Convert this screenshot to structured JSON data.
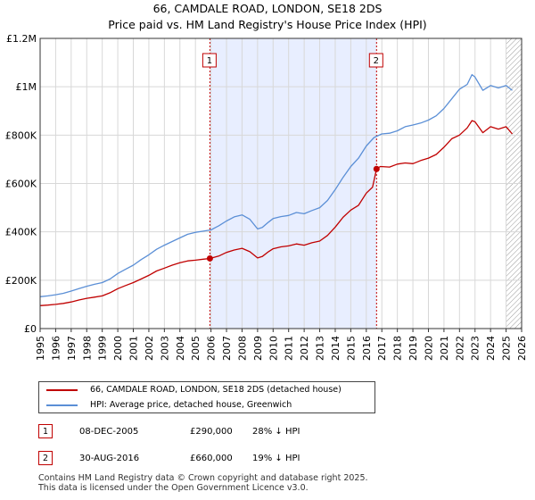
{
  "header": {
    "title_line1": "66, CAMDALE ROAD, LONDON, SE18 2DS",
    "title_line2": "Price paid vs. HM Land Registry's House Price Index (HPI)"
  },
  "colors": {
    "property": "#c00000",
    "hpi": "#5b8fd6",
    "shade": "#e8eeff",
    "marker": "#c00000"
  },
  "chart_data": {
    "type": "line",
    "xlim": [
      1995,
      2026
    ],
    "ylim": [
      0,
      1200000
    ],
    "x_ticks": [
      "1995",
      "1996",
      "1997",
      "1998",
      "1999",
      "2000",
      "2001",
      "2002",
      "2003",
      "2004",
      "2005",
      "2006",
      "2007",
      "2008",
      "2009",
      "2010",
      "2011",
      "2012",
      "2013",
      "2014",
      "2015",
      "2016",
      "2017",
      "2018",
      "2019",
      "2020",
      "2021",
      "2022",
      "2023",
      "2024",
      "2025",
      "2026"
    ],
    "y_ticks": [
      {
        "value": 0,
        "label": "£0"
      },
      {
        "value": 200000,
        "label": "£200K"
      },
      {
        "value": 400000,
        "label": "£400K"
      },
      {
        "value": 600000,
        "label": "£600K"
      },
      {
        "value": 800000,
        "label": "£800K"
      },
      {
        "value": 1000000,
        "label": "£1M"
      },
      {
        "value": 1200000,
        "label": "£1.2M"
      }
    ],
    "grid": true,
    "shaded_range": [
      2005.93,
      2016.66
    ],
    "hatched_from": 2025.0,
    "series": [
      {
        "name": "66, CAMDALE ROAD, LONDON, SE18 2DS (detached house)",
        "color": "#c00000",
        "x": [
          1995.0,
          1995.5,
          1996.0,
          1996.5,
          1997.0,
          1997.5,
          1998.0,
          1998.5,
          1999.0,
          1999.5,
          2000.0,
          2000.5,
          2001.0,
          2001.5,
          2002.0,
          2002.5,
          2003.0,
          2003.5,
          2004.0,
          2004.5,
          2005.0,
          2005.5,
          2005.93,
          2006.5,
          2007.0,
          2007.5,
          2008.0,
          2008.5,
          2009.0,
          2009.3,
          2009.7,
          2010.0,
          2010.5,
          2011.0,
          2011.5,
          2012.0,
          2012.5,
          2013.0,
          2013.5,
          2014.0,
          2014.5,
          2015.0,
          2015.5,
          2016.0,
          2016.4,
          2016.66,
          2016.9,
          2017.5,
          2018.0,
          2018.5,
          2019.0,
          2019.5,
          2020.0,
          2020.5,
          2021.0,
          2021.5,
          2022.0,
          2022.5,
          2022.8,
          2023.0,
          2023.5,
          2024.0,
          2024.5,
          2025.0,
          2025.4
        ],
        "values": [
          95000,
          97000,
          100000,
          104000,
          110000,
          118000,
          125000,
          130000,
          135000,
          148000,
          165000,
          178000,
          190000,
          205000,
          220000,
          238000,
          250000,
          262000,
          272000,
          280000,
          283000,
          287000,
          290000,
          300000,
          315000,
          325000,
          332000,
          318000,
          292000,
          298000,
          318000,
          330000,
          338000,
          342000,
          350000,
          345000,
          355000,
          362000,
          385000,
          420000,
          460000,
          490000,
          510000,
          560000,
          585000,
          660000,
          670000,
          668000,
          680000,
          685000,
          682000,
          695000,
          705000,
          720000,
          750000,
          785000,
          800000,
          830000,
          860000,
          855000,
          810000,
          835000,
          825000,
          835000,
          805000
        ]
      },
      {
        "name": "HPI: Average price, detached house, Greenwich",
        "color": "#5b8fd6",
        "x": [
          1995.0,
          1995.5,
          1996.0,
          1996.5,
          1997.0,
          1997.5,
          1998.0,
          1998.5,
          1999.0,
          1999.5,
          2000.0,
          2000.5,
          2001.0,
          2001.5,
          2002.0,
          2002.5,
          2003.0,
          2003.5,
          2004.0,
          2004.5,
          2005.0,
          2005.5,
          2006.0,
          2006.5,
          2007.0,
          2007.5,
          2008.0,
          2008.5,
          2009.0,
          2009.3,
          2009.7,
          2010.0,
          2010.5,
          2011.0,
          2011.5,
          2012.0,
          2012.5,
          2013.0,
          2013.5,
          2014.0,
          2014.5,
          2015.0,
          2015.5,
          2016.0,
          2016.5,
          2017.0,
          2017.5,
          2018.0,
          2018.5,
          2019.0,
          2019.5,
          2020.0,
          2020.5,
          2021.0,
          2021.5,
          2022.0,
          2022.5,
          2022.8,
          2023.0,
          2023.5,
          2024.0,
          2024.5,
          2025.0,
          2025.4
        ],
        "values": [
          132000,
          135000,
          140000,
          146000,
          155000,
          165000,
          175000,
          183000,
          190000,
          205000,
          228000,
          245000,
          262000,
          285000,
          305000,
          328000,
          345000,
          360000,
          375000,
          390000,
          398000,
          403000,
          408000,
          425000,
          445000,
          462000,
          470000,
          452000,
          412000,
          418000,
          440000,
          455000,
          463000,
          468000,
          480000,
          475000,
          488000,
          500000,
          530000,
          575000,
          625000,
          670000,
          705000,
          755000,
          790000,
          805000,
          808000,
          818000,
          835000,
          842000,
          850000,
          862000,
          880000,
          910000,
          950000,
          990000,
          1010000,
          1050000,
          1040000,
          985000,
          1005000,
          995000,
          1005000,
          985000
        ]
      }
    ],
    "transactions": [
      {
        "num": "1",
        "x": 2005.93,
        "price_value": 290000,
        "date": "08-DEC-2005",
        "price": "£290,000",
        "hpi": "28% ↓ HPI"
      },
      {
        "num": "2",
        "x": 2016.66,
        "price_value": 660000,
        "date": "30-AUG-2016",
        "price": "£660,000",
        "hpi": "19% ↓ HPI"
      }
    ]
  },
  "legend": {
    "property": "66, CAMDALE ROAD, LONDON, SE18 2DS (detached house)",
    "hpi": "HPI: Average price, detached house, Greenwich"
  },
  "footer": {
    "line1": "Contains HM Land Registry data © Crown copyright and database right 2025.",
    "line2": "This data is licensed under the Open Government Licence v3.0."
  }
}
